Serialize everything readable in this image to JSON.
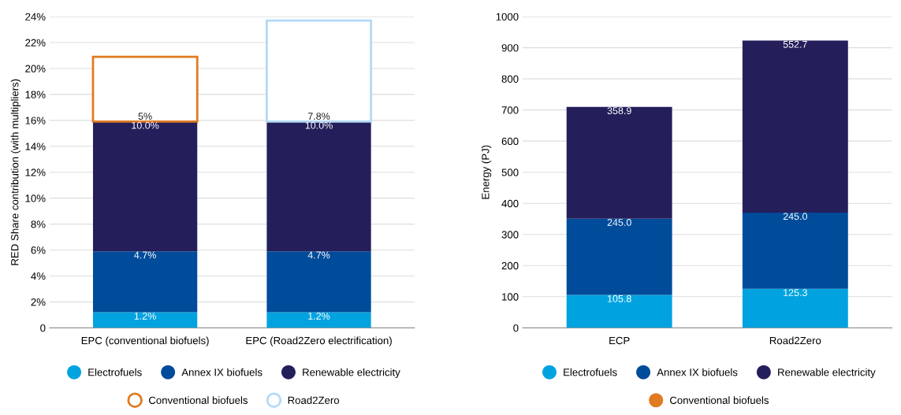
{
  "chart_data": [
    {
      "type": "bar",
      "stacked": true,
      "ylabel": "RED Share contribution (with multipliers)",
      "categories": [
        "EPC (conventional biofuels)",
        "EPC (Road2Zero electrification)"
      ],
      "series": [
        {
          "name": "Electrofuels",
          "color": "#00a3e0",
          "values": [
            1.2,
            1.2
          ],
          "value_labels": [
            "1.2%",
            "1.2%"
          ]
        },
        {
          "name": "Annex IX biofuels",
          "color": "#004b9a",
          "values": [
            4.7,
            4.7
          ],
          "value_labels": [
            "4.7%",
            "4.7%"
          ]
        },
        {
          "name": "Renewable electricity",
          "color": "#241f5b",
          "values": [
            10.0,
            10.0
          ],
          "value_labels": [
            "10.0%",
            "10.0%"
          ]
        },
        {
          "name": "Conventional biofuels",
          "color": "#e07b22",
          "line_style": "solid",
          "values": [
            5,
            null
          ],
          "value_labels": [
            "5%",
            null
          ]
        },
        {
          "name": "Road2Zero",
          "color": "#b3d9f7",
          "line_style": "solid",
          "values": [
            null,
            7.8
          ],
          "value_labels": [
            null,
            "7.8%"
          ]
        }
      ],
      "ylim": [
        0,
        24
      ],
      "yticks": [
        0,
        {
          "value": 2,
          "label": "2%"
        },
        {
          "value": 4,
          "label": "4%"
        },
        {
          "value": 6,
          "label": "6%"
        },
        {
          "value": 8,
          "label": "8%"
        },
        {
          "value": 10,
          "label": "10%"
        },
        {
          "value": 12,
          "label": "12%"
        },
        {
          "value": 14,
          "label": "14%"
        },
        {
          "value": 16,
          "label": "16%"
        },
        {
          "value": 18,
          "label": "18%"
        },
        {
          "value": 20,
          "label": "20%"
        },
        {
          "value": 22,
          "label": "22%"
        },
        {
          "value": 24,
          "label": "24%"
        }
      ],
      "grid": "y",
      "legend": "bottom"
    },
    {
      "type": "bar",
      "stacked": true,
      "ylabel": "Energy (PJ)",
      "categories": [
        "ECP",
        "Road2Zero"
      ],
      "series": [
        {
          "name": "Electrofuels",
          "color": "#00a3e0",
          "values": [
            105.8,
            125.3
          ],
          "value_labels": [
            "105.8",
            "125.3"
          ]
        },
        {
          "name": "Annex IX biofuels",
          "color": "#004b9a",
          "values": [
            245.0,
            245.0
          ],
          "value_labels": [
            "245.0",
            "245.0"
          ]
        },
        {
          "name": "Renewable electricity",
          "color": "#241f5b",
          "values": [
            358.9,
            552.7
          ],
          "value_labels": [
            "358.9",
            "552.7"
          ]
        },
        {
          "name": "Conventional biofuels",
          "color": "#e07b22",
          "values": [
            null,
            null
          ]
        }
      ],
      "ylim": [
        0,
        1000
      ],
      "yticks": [
        0,
        100,
        200,
        300,
        400,
        500,
        600,
        700,
        800,
        900,
        1000
      ],
      "grid": "y",
      "legend": "bottom"
    }
  ]
}
